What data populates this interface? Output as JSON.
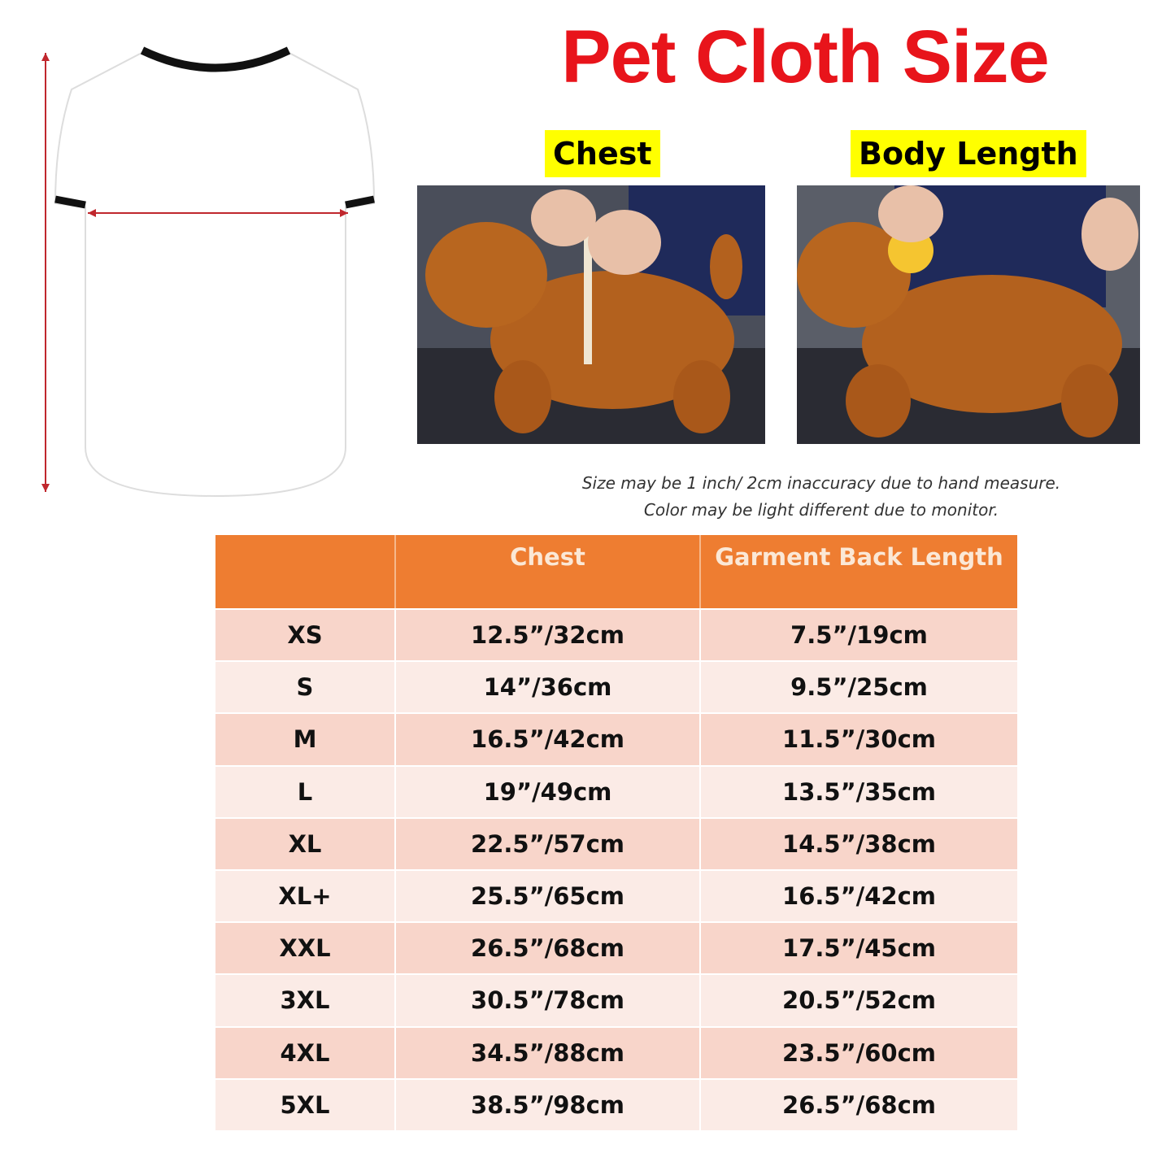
{
  "title": "Pet Cloth Size",
  "photos": [
    {
      "label": "Chest"
    },
    {
      "label": "Body Length"
    }
  ],
  "notes": [
    "Size may be 1 inch/ 2cm inaccuracy due to hand measure.",
    "Color may be light different due to monitor."
  ],
  "colors": {
    "title": "#e8141b",
    "label_bg": "#ffff00",
    "header": "#ee7d31",
    "row_dark": "#f8d5ca",
    "row_light": "#fbebe6",
    "measure_line": "#c0272d"
  },
  "table": {
    "headers": [
      "",
      "Chest",
      "Garment Back Length"
    ],
    "rows": [
      [
        "XS",
        "12.5”/32cm",
        "7.5”/19cm"
      ],
      [
        "S",
        "14”/36cm",
        "9.5”/25cm"
      ],
      [
        "M",
        "16.5”/42cm",
        "11.5”/30cm"
      ],
      [
        "L",
        "19”/49cm",
        "13.5”/35cm"
      ],
      [
        "XL",
        "22.5”/57cm",
        "14.5”/38cm"
      ],
      [
        "XL+",
        "25.5”/65cm",
        "16.5”/42cm"
      ],
      [
        "XXL",
        "26.5”/68cm",
        "17.5”/45cm"
      ],
      [
        "3XL",
        "30.5”/78cm",
        "20.5”/52cm"
      ],
      [
        "4XL",
        "34.5”/88cm",
        "23.5”/60cm"
      ],
      [
        "5XL",
        "38.5”/98cm",
        "26.5”/68cm"
      ]
    ]
  }
}
